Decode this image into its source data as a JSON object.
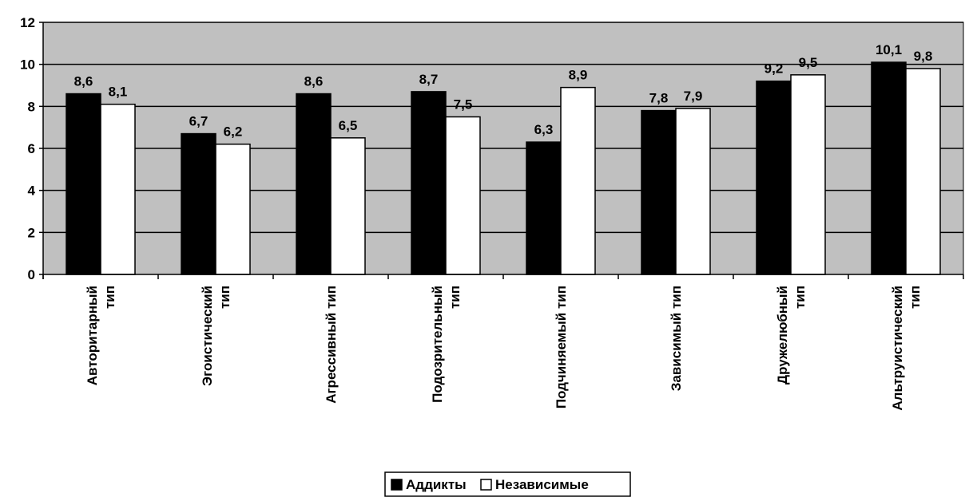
{
  "chart_data": {
    "type": "bar",
    "title": "",
    "xlabel": "",
    "ylabel": "",
    "ylim": [
      0,
      12
    ],
    "yticks": [
      0,
      2,
      4,
      6,
      8,
      10,
      12
    ],
    "grid": true,
    "legend_position": "bottom",
    "categories": [
      [
        "Авторитарный",
        "тип"
      ],
      [
        "Эгоистический",
        "тип"
      ],
      [
        "Агрессивный тип"
      ],
      [
        "Подозрительный",
        "тип"
      ],
      [
        "Подчиняемый тип"
      ],
      [
        "Зависимый тип"
      ],
      [
        "Дружелюбный",
        "тип"
      ],
      [
        "Альтруистический",
        "тип"
      ]
    ],
    "series": [
      {
        "name": "Аддикты",
        "color": "#000000",
        "values": [
          8.6,
          6.7,
          8.6,
          8.7,
          6.3,
          7.8,
          9.2,
          10.1
        ],
        "labels": [
          "8,6",
          "6,7",
          "8,6",
          "8,7",
          "6,3",
          "7,8",
          "9,2",
          "10,1"
        ]
      },
      {
        "name": "Независимые",
        "color": "#ffffff",
        "values": [
          8.1,
          6.2,
          6.5,
          7.5,
          8.9,
          7.9,
          9.5,
          9.8
        ],
        "labels": [
          "8,1",
          "6,2",
          "6,5",
          "7,5",
          "8,9",
          "7,9",
          "9,5",
          "9,8"
        ]
      }
    ],
    "plot_background": "#c0c0c0"
  }
}
